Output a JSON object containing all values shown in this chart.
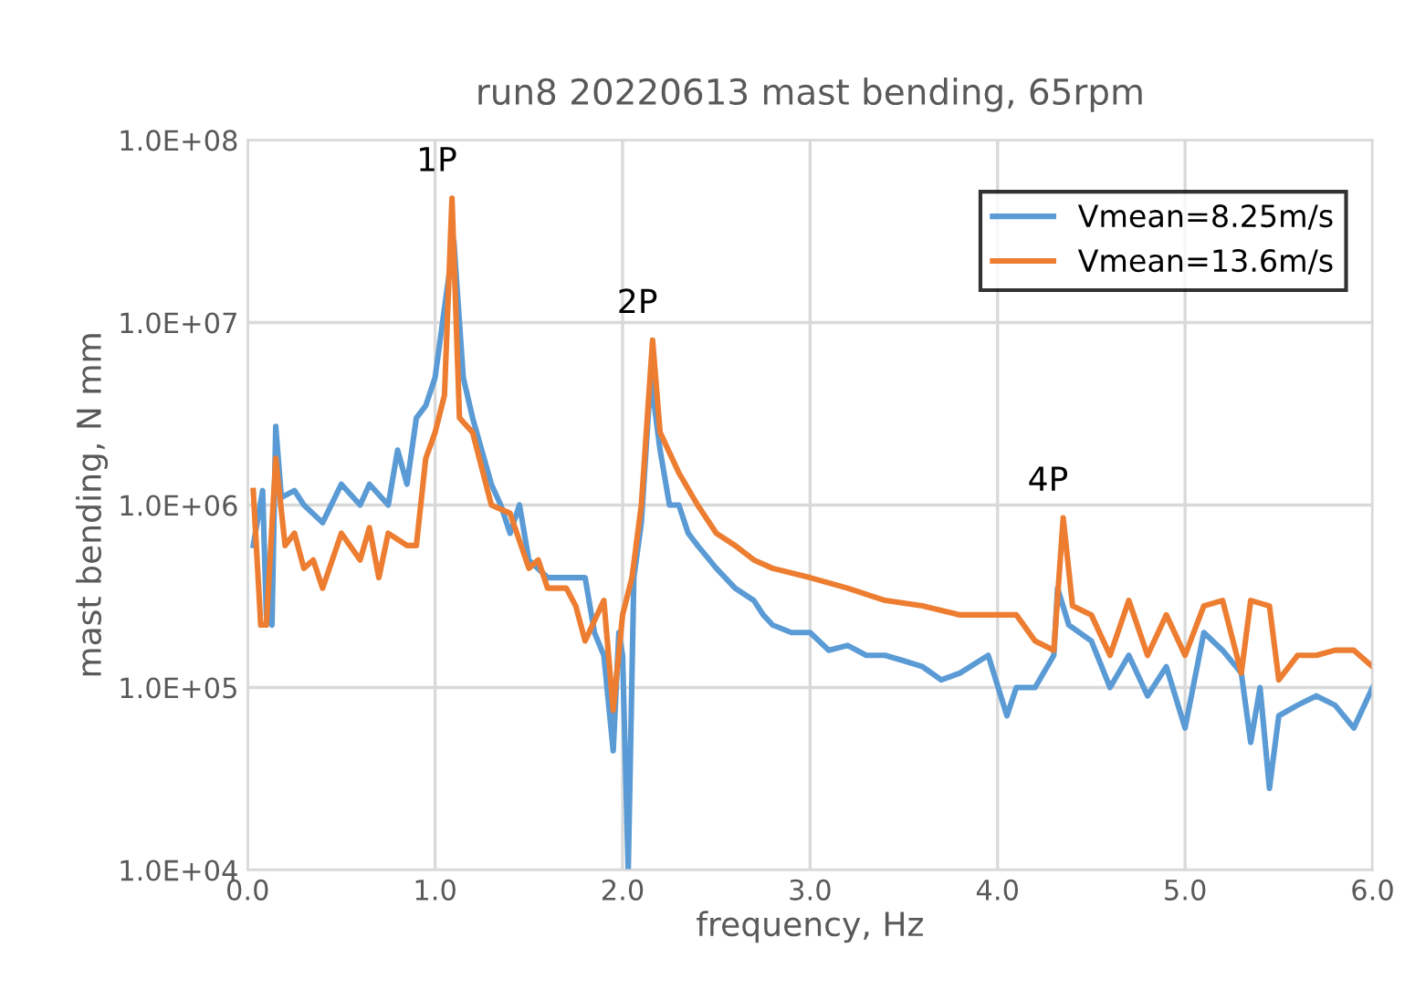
{
  "chart_data": {
    "type": "line",
    "title": "run8 20220613 mast bending, 65rpm",
    "xlabel": "frequency, Hz",
    "ylabel": "mast bending, N mm",
    "log": "y",
    "xlim": [
      0,
      6
    ],
    "ylim": [
      10000,
      100000000
    ],
    "xticks": [
      {
        "value": 0,
        "label": "0.0"
      },
      {
        "value": 1,
        "label": "1.0"
      },
      {
        "value": 2,
        "label": "2.0"
      },
      {
        "value": 3,
        "label": "3.0"
      },
      {
        "value": 4,
        "label": "4.0"
      },
      {
        "value": 5,
        "label": "5.0"
      },
      {
        "value": 6,
        "label": "6.0"
      }
    ],
    "yticks": [
      {
        "value": 10000,
        "label": "1.0E+04"
      },
      {
        "value": 100000,
        "label": "1.0E+05"
      },
      {
        "value": 1000000,
        "label": "1.0E+06"
      },
      {
        "value": 10000000,
        "label": "1.0E+07"
      },
      {
        "value": 100000000,
        "label": "1.0E+08"
      }
    ],
    "grid": true,
    "legend": "top right",
    "marker": "none",
    "line_style": "solid",
    "annotations": [
      {
        "text": "1P",
        "x": 1.09,
        "y": 48000000
      },
      {
        "text": "2P",
        "x": 2.16,
        "y": 8000000
      },
      {
        "text": "4P",
        "x": 4.35,
        "y": 850000
      }
    ],
    "series": [
      {
        "name": "Vmean=8.25m/s",
        "color": "#5b9bd5",
        "x": [
          0.03,
          0.08,
          0.1,
          0.13,
          0.15,
          0.18,
          0.25,
          0.3,
          0.4,
          0.5,
          0.6,
          0.65,
          0.75,
          0.8,
          0.85,
          0.9,
          0.95,
          1.0,
          1.05,
          1.1,
          1.15,
          1.2,
          1.3,
          1.35,
          1.4,
          1.45,
          1.5,
          1.6,
          1.7,
          1.8,
          1.85,
          1.9,
          1.95,
          1.98,
          2.0,
          2.03,
          2.06,
          2.1,
          2.15,
          2.2,
          2.25,
          2.3,
          2.35,
          2.4,
          2.5,
          2.6,
          2.7,
          2.75,
          2.8,
          2.9,
          3.0,
          3.1,
          3.2,
          3.3,
          3.4,
          3.5,
          3.6,
          3.7,
          3.8,
          3.95,
          4.05,
          4.1,
          4.2,
          4.3,
          4.32,
          4.38,
          4.5,
          4.6,
          4.7,
          4.8,
          4.9,
          5.0,
          5.1,
          5.2,
          5.3,
          5.35,
          5.4,
          5.45,
          5.5,
          5.6,
          5.7,
          5.8,
          5.9,
          6.0
        ],
        "values": [
          600000,
          1200000,
          250000,
          220000,
          2700000,
          1100000,
          1200000,
          1000000,
          800000,
          1300000,
          1000000,
          1300000,
          1000000,
          2000000,
          1300000,
          3000000,
          3500000,
          5000000,
          12000000,
          28000000,
          5000000,
          3000000,
          1300000,
          1000000,
          700000,
          1000000,
          500000,
          400000,
          400000,
          400000,
          200000,
          150000,
          45000,
          200000,
          150000,
          10000,
          400000,
          800000,
          5000000,
          2000000,
          1000000,
          1000000,
          700000,
          600000,
          450000,
          350000,
          300000,
          250000,
          220000,
          200000,
          200000,
          160000,
          170000,
          150000,
          150000,
          140000,
          130000,
          110000,
          120000,
          150000,
          70000,
          100000,
          100000,
          150000,
          350000,
          220000,
          180000,
          100000,
          150000,
          90000,
          130000,
          60000,
          200000,
          160000,
          120000,
          50000,
          100000,
          28000,
          70000,
          80000,
          90000,
          80000,
          60000,
          100000
        ]
      },
      {
        "name": "Vmean=13.6m/s",
        "color": "#ed7d31",
        "x": [
          0.03,
          0.07,
          0.1,
          0.15,
          0.2,
          0.25,
          0.3,
          0.35,
          0.4,
          0.5,
          0.6,
          0.65,
          0.7,
          0.75,
          0.85,
          0.9,
          0.95,
          1.0,
          1.05,
          1.09,
          1.13,
          1.2,
          1.3,
          1.4,
          1.5,
          1.55,
          1.6,
          1.7,
          1.75,
          1.8,
          1.9,
          1.95,
          2.0,
          2.05,
          2.1,
          2.16,
          2.2,
          2.3,
          2.4,
          2.5,
          2.6,
          2.7,
          2.8,
          3.0,
          3.2,
          3.4,
          3.6,
          3.8,
          4.0,
          4.1,
          4.2,
          4.3,
          4.35,
          4.4,
          4.5,
          4.6,
          4.7,
          4.8,
          4.9,
          5.0,
          5.1,
          5.2,
          5.3,
          5.35,
          5.45,
          5.5,
          5.6,
          5.7,
          5.8,
          5.9,
          6.0
        ],
        "values": [
          1200000,
          220000,
          220000,
          1800000,
          600000,
          700000,
          450000,
          500000,
          350000,
          700000,
          500000,
          750000,
          400000,
          700000,
          600000,
          600000,
          1800000,
          2500000,
          4000000,
          48000000,
          3000000,
          2500000,
          1000000,
          900000,
          450000,
          500000,
          350000,
          350000,
          280000,
          180000,
          300000,
          75000,
          250000,
          400000,
          1000000,
          8000000,
          2500000,
          1500000,
          1000000,
          700000,
          600000,
          500000,
          450000,
          400000,
          350000,
          300000,
          280000,
          250000,
          250000,
          250000,
          180000,
          160000,
          850000,
          280000,
          250000,
          150000,
          300000,
          150000,
          250000,
          150000,
          280000,
          300000,
          120000,
          300000,
          280000,
          110000,
          150000,
          150000,
          160000,
          160000,
          130000
        ]
      }
    ]
  }
}
